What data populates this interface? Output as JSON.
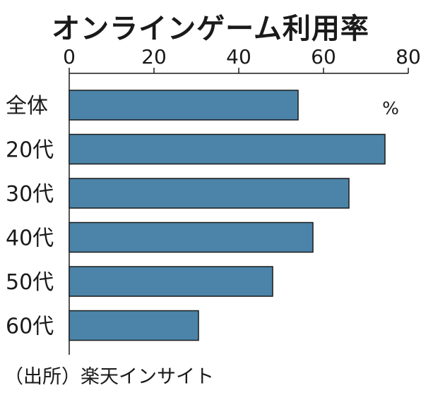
{
  "chart_data": {
    "type": "bar",
    "orientation": "horizontal",
    "title": "オンラインゲーム利用率",
    "unit": "%",
    "categories": [
      "全体",
      "20代",
      "30代",
      "40代",
      "50代",
      "60代"
    ],
    "values": [
      54,
      74.5,
      66,
      57.5,
      48,
      30.5
    ],
    "xlim": [
      0,
      80
    ],
    "xticks": [
      0,
      20,
      40,
      60,
      80
    ],
    "bar_color": "#4b84a8",
    "grid": false
  },
  "source": "（出所）楽天インサイト"
}
